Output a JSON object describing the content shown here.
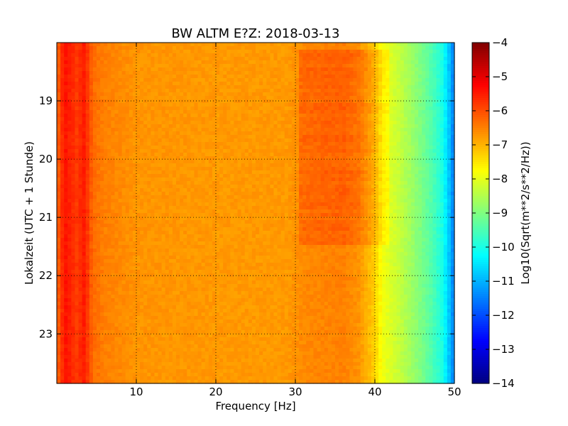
{
  "chart_data": {
    "type": "heatmap",
    "title": "BW ALTM E?Z: 2018-03-13",
    "xlabel": "Frequency [Hz]",
    "ylabel": "Lokalzeit (UTC + 1 Stunde)",
    "colorbar_label": "Log10(Sqrt(m**2/s**2/Hz))",
    "xlim": [
      0,
      50
    ],
    "ylim": [
      18.0,
      23.85
    ],
    "y_inverted": true,
    "x_ticks": [
      10,
      20,
      30,
      40,
      50
    ],
    "y_ticks": [
      19,
      20,
      21,
      22,
      23
    ],
    "clim": [
      -14,
      -4
    ],
    "colorbar_ticks": [
      -4,
      -5,
      -6,
      -7,
      -8,
      -9,
      -10,
      -11,
      -12,
      -13,
      -14
    ],
    "colormap": "jet",
    "grid": true,
    "frequency_profile": [
      {
        "f": 0.0,
        "v": -6.3
      },
      {
        "f": 1.0,
        "v": -5.4
      },
      {
        "f": 2.5,
        "v": -5.8
      },
      {
        "f": 3.5,
        "v": -5.5
      },
      {
        "f": 4.5,
        "v": -6.3
      },
      {
        "f": 6.0,
        "v": -6.5
      },
      {
        "f": 10.0,
        "v": -6.7
      },
      {
        "f": 20.0,
        "v": -6.75
      },
      {
        "f": 29.0,
        "v": -6.75
      },
      {
        "f": 31.0,
        "v": -6.6
      },
      {
        "f": 36.0,
        "v": -6.5
      },
      {
        "f": 38.0,
        "v": -6.7
      },
      {
        "f": 40.0,
        "v": -7.3
      },
      {
        "f": 41.0,
        "v": -7.9
      },
      {
        "f": 43.0,
        "v": -8.3
      },
      {
        "f": 45.0,
        "v": -8.8
      },
      {
        "f": 47.0,
        "v": -9.4
      },
      {
        "f": 48.5,
        "v": -10.0
      },
      {
        "f": 49.3,
        "v": -10.8
      },
      {
        "f": 50.0,
        "v": -11.6
      }
    ],
    "elevated_bands": [
      {
        "f_from": 30.5,
        "f_to": 42,
        "t_from": 18.1,
        "t_to": 21.5,
        "delta": 0.35
      }
    ]
  }
}
